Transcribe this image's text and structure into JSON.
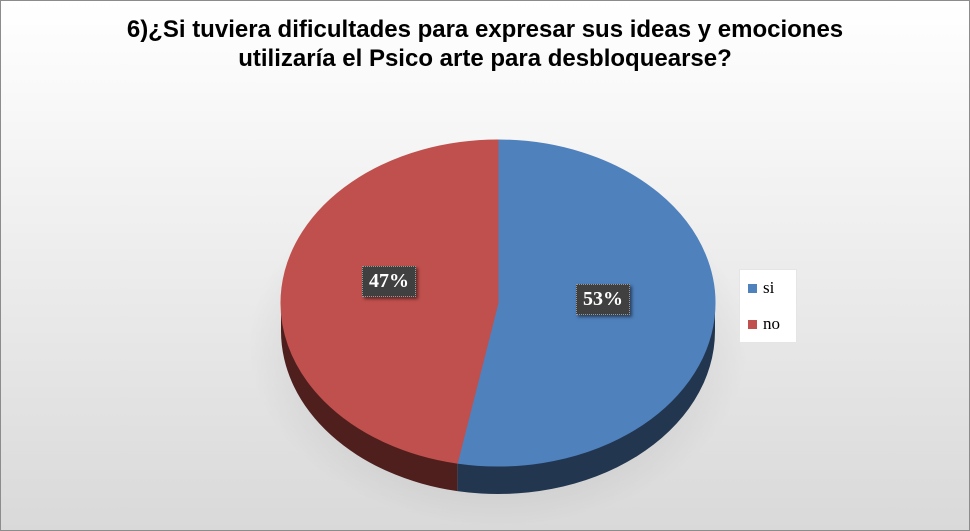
{
  "chart_data": {
    "type": "pie",
    "style": "3d",
    "title_line1": "6)¿Si tuviera dificultades para expresar sus ideas y emociones",
    "title_line2": "utilizaría el Psico arte para desbloquearse?",
    "slices": [
      {
        "label": "si",
        "value": 53,
        "display": "53%",
        "color": "#4f81bd",
        "side_color": "#22364f"
      },
      {
        "label": "no",
        "value": 47,
        "display": "47%",
        "color": "#c0504d",
        "side_color": "#4f1f1e"
      }
    ],
    "legend_position": "right",
    "background_color": "#e8e8e8"
  }
}
